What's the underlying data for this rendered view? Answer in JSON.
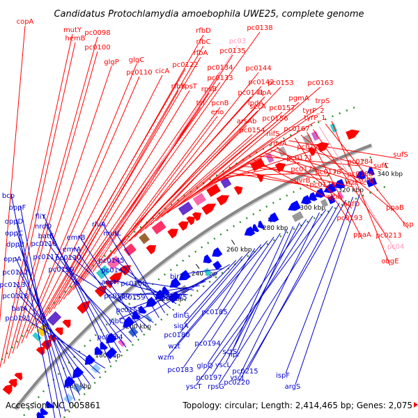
{
  "title": "Candidatus Protochlamydia amoebophila UWE25, complete genome",
  "footer": {
    "accession": "Accession: NC_005861",
    "stats": "Topology: circular; Length: 2,414,465 bp; Genes: 2,075"
  },
  "colors": {
    "forward_label": "#ff0000",
    "reverse_label": "#0000cc",
    "highlight_label": "#ff99bb",
    "backbone": "#888888",
    "guide": "#2e8b2e"
  },
  "ticks": [
    "160 kbp",
    "180 kbp",
    "200 kbp",
    "220 kbp",
    "240 kbp",
    "260 kbp",
    "280 kbp",
    "300 kbp",
    "320 kbp",
    "340 kbp"
  ],
  "forward_genes": [
    "copA",
    "mutY",
    "hemB",
    "pc0098",
    "pc0100",
    "glgP",
    "glgC",
    "pc0110",
    "cicA",
    "pc0122",
    "rfbD",
    "rfbC",
    "rfbA",
    "rfbB",
    "rpsT",
    "pc0134",
    "pc0133",
    "rpsB",
    "tsf",
    "pc0138",
    "pc03",
    "pc0135",
    "pc0142",
    "pc0141",
    "pcnB",
    "eno",
    "pc0144",
    "secA",
    "lpdA",
    "lipA",
    "arsAb",
    "pc0154",
    "pc0153",
    "pc0157",
    "pc0156",
    "nifS",
    "pc0167",
    "pgmA",
    "trpS",
    "tyrP_2",
    "tyrP_1",
    "pc0163",
    "rodA",
    "pc0172",
    "pc0171",
    "pc0173",
    "uvrB",
    "pc0179",
    "pc0178",
    "wzc",
    "wza",
    "pc0184",
    "sufB",
    "pc0188",
    "sufD",
    "sufC",
    "sufS",
    "pc0193",
    "ppaB",
    "ppaA",
    "pc0213",
    "pc04",
    "tsp",
    "obgE"
  ],
  "reverse_genes": [
    "bcp",
    "oppF",
    "oppD",
    "oppC",
    "dppB",
    "oppA",
    "pc0112",
    "pc0113",
    "pc0118",
    "batA",
    "pc0121",
    "fliY",
    "nrdD",
    "batE",
    "pc0116",
    "pc0117",
    "emrA",
    "emrB",
    "pc0130",
    "pc0129",
    "rluA",
    "mutL",
    "pc0145",
    "pc0147",
    "aspH",
    "pc0150",
    "pc0158",
    "pc0159",
    "pc0155",
    "yjbC",
    "pc0164",
    "birA",
    "pc0175",
    "dinG",
    "sigA",
    "pc0180",
    "pc0185",
    "wzt",
    "wzm",
    "pc0183",
    "pc0194",
    "sctS",
    "npr",
    "yscL",
    "glpQ",
    "pc0197",
    "yscJ",
    "yscT",
    "rpsG",
    "pc0215",
    "pc0220",
    "ispF",
    "argS"
  ]
}
